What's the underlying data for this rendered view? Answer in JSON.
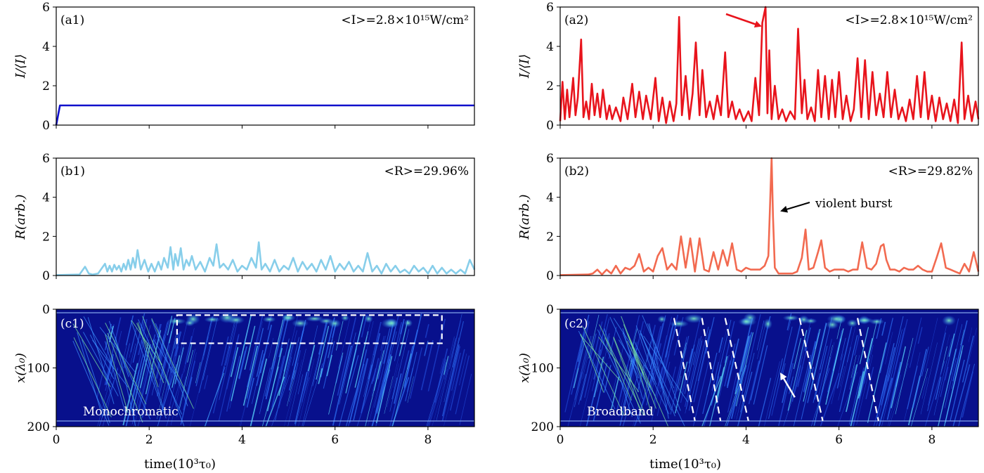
{
  "figure": {
    "xlabel": "time(10³τ₀)",
    "x_ticks": [
      0,
      2,
      4,
      6,
      8
    ],
    "xlim": [
      0,
      9
    ]
  },
  "chart_data": [
    {
      "type": "line",
      "panel": "(a1)",
      "annotation": "<I>=2.8×10¹⁵W/cm²",
      "ylabel": "I/⟨I⟩",
      "ylim": [
        0,
        6
      ],
      "y_ticks": [
        0,
        2,
        4,
        6
      ],
      "color": "#1010cc",
      "x": [
        0,
        0.08,
        9
      ],
      "y": [
        0,
        1,
        1
      ]
    },
    {
      "type": "line",
      "panel": "(a2)",
      "annotation": "<I>=2.8×10¹⁵W/cm²",
      "ylabel": "I/⟨I⟩",
      "ylim": [
        0,
        6
      ],
      "y_ticks": [
        0,
        2,
        4,
        6
      ],
      "color": "#e8141c",
      "x": [
        0,
        0.05,
        0.1,
        0.15,
        0.2,
        0.28,
        0.33,
        0.38,
        0.45,
        0.5,
        0.56,
        0.62,
        0.68,
        0.74,
        0.8,
        0.86,
        0.92,
        1.0,
        1.06,
        1.12,
        1.2,
        1.3,
        1.36,
        1.45,
        1.55,
        1.62,
        1.7,
        1.78,
        1.85,
        1.95,
        2.05,
        2.12,
        2.2,
        2.28,
        2.36,
        2.44,
        2.5,
        2.56,
        2.62,
        2.7,
        2.78,
        2.85,
        2.92,
        3.0,
        3.06,
        3.14,
        3.22,
        3.3,
        3.38,
        3.46,
        3.55,
        3.62,
        3.7,
        3.78,
        3.86,
        3.95,
        4.05,
        4.12,
        4.2,
        4.28,
        4.35,
        4.42,
        4.46,
        4.5,
        4.55,
        4.62,
        4.7,
        4.78,
        4.86,
        4.95,
        5.05,
        5.12,
        5.2,
        5.26,
        5.32,
        5.4,
        5.48,
        5.55,
        5.62,
        5.7,
        5.78,
        5.85,
        5.92,
        6.0,
        6.08,
        6.16,
        6.25,
        6.32,
        6.4,
        6.48,
        6.56,
        6.64,
        6.72,
        6.8,
        6.88,
        6.96,
        7.04,
        7.12,
        7.2,
        7.28,
        7.36,
        7.44,
        7.52,
        7.6,
        7.68,
        7.76,
        7.84,
        7.92,
        8.0,
        8.08,
        8.16,
        8.24,
        8.32,
        8.4,
        8.48,
        8.56,
        8.64,
        8.7,
        8.78,
        8.86,
        8.94,
        9.0
      ],
      "y": [
        0.2,
        2.2,
        0.3,
        1.8,
        0.4,
        2.4,
        0.5,
        1.4,
        4.35,
        0.4,
        1.2,
        0.3,
        2.1,
        0.5,
        1.6,
        0.4,
        1.8,
        0.3,
        1.0,
        0.3,
        0.9,
        0.2,
        1.4,
        0.3,
        2.1,
        0.4,
        1.7,
        0.3,
        1.5,
        0.3,
        2.4,
        0.2,
        1.4,
        0.1,
        1.2,
        0.2,
        1.1,
        5.5,
        0.5,
        2.5,
        0.3,
        1.6,
        4.2,
        0.5,
        2.8,
        0.4,
        1.2,
        0.3,
        1.5,
        0.5,
        3.7,
        0.4,
        1.2,
        0.3,
        0.8,
        0.2,
        0.7,
        0.2,
        2.4,
        0.5,
        5.2,
        6.0,
        0.6,
        3.8,
        0.3,
        2.0,
        0.3,
        0.8,
        0.2,
        0.7,
        0.3,
        4.9,
        0.6,
        2.3,
        0.3,
        0.9,
        0.2,
        2.8,
        0.4,
        2.5,
        0.3,
        2.3,
        0.4,
        2.7,
        0.3,
        1.5,
        0.2,
        0.8,
        3.4,
        0.4,
        3.3,
        0.3,
        2.7,
        0.5,
        1.6,
        0.4,
        2.7,
        0.4,
        1.8,
        0.3,
        0.9,
        0.2,
        1.3,
        0.3,
        2.5,
        0.4,
        2.7,
        0.3,
        1.5,
        0.2,
        1.4,
        0.3,
        1.1,
        0.2,
        1.3,
        0.1,
        4.2,
        0.3,
        1.5,
        0.2,
        1.2,
        0.3
      ]
    },
    {
      "type": "line",
      "panel": "(b1)",
      "annotation": "<R>=29.96%",
      "ylabel": "R(arb.)",
      "ylim": [
        0,
        6
      ],
      "y_ticks": [
        0,
        2,
        4,
        6
      ],
      "color": "#87ceea",
      "x": [
        0,
        0.5,
        0.62,
        0.7,
        0.78,
        0.9,
        1.05,
        1.1,
        1.15,
        1.2,
        1.25,
        1.3,
        1.35,
        1.4,
        1.45,
        1.5,
        1.55,
        1.6,
        1.65,
        1.7,
        1.75,
        1.82,
        1.9,
        1.98,
        2.05,
        2.12,
        2.2,
        2.26,
        2.32,
        2.4,
        2.46,
        2.52,
        2.56,
        2.62,
        2.68,
        2.74,
        2.8,
        2.86,
        2.92,
        3.0,
        3.1,
        3.2,
        3.3,
        3.38,
        3.45,
        3.52,
        3.6,
        3.7,
        3.8,
        3.9,
        4.0,
        4.1,
        4.2,
        4.3,
        4.36,
        4.42,
        4.5,
        4.6,
        4.7,
        4.8,
        4.9,
        5.0,
        5.1,
        5.2,
        5.3,
        5.4,
        5.5,
        5.6,
        5.7,
        5.8,
        5.9,
        6.0,
        6.1,
        6.2,
        6.3,
        6.4,
        6.5,
        6.6,
        6.7,
        6.8,
        6.9,
        7.0,
        7.1,
        7.2,
        7.3,
        7.4,
        7.5,
        7.6,
        7.7,
        7.8,
        7.9,
        8.0,
        8.1,
        8.2,
        8.3,
        8.4,
        8.5,
        8.6,
        8.7,
        8.8,
        8.9,
        9.0
      ],
      "y": [
        0.02,
        0.05,
        0.45,
        0.1,
        0.05,
        0.1,
        0.6,
        0.2,
        0.5,
        0.2,
        0.55,
        0.3,
        0.5,
        0.2,
        0.6,
        0.3,
        0.8,
        0.3,
        0.9,
        0.4,
        1.3,
        0.3,
        0.8,
        0.2,
        0.6,
        0.2,
        0.7,
        0.3,
        0.9,
        0.4,
        1.45,
        0.3,
        1.1,
        0.5,
        1.4,
        0.3,
        0.8,
        0.5,
        1.0,
        0.3,
        0.7,
        0.2,
        0.9,
        0.5,
        1.6,
        0.4,
        0.6,
        0.3,
        0.8,
        0.2,
        0.5,
        0.3,
        0.9,
        0.4,
        1.7,
        0.3,
        0.6,
        0.2,
        0.8,
        0.2,
        0.5,
        0.3,
        0.9,
        0.2,
        0.7,
        0.3,
        0.6,
        0.2,
        0.8,
        0.3,
        1.0,
        0.2,
        0.6,
        0.3,
        0.7,
        0.2,
        0.5,
        0.2,
        1.15,
        0.2,
        0.5,
        0.1,
        0.6,
        0.2,
        0.5,
        0.15,
        0.3,
        0.1,
        0.5,
        0.2,
        0.4,
        0.1,
        0.5,
        0.1,
        0.4,
        0.1,
        0.3,
        0.1,
        0.3,
        0.1,
        0.8,
        0.3
      ]
    },
    {
      "type": "line",
      "panel": "(b2)",
      "annotation": "<R>=29.82%",
      "ylabel": "R(arb.)",
      "ylim": [
        0,
        6
      ],
      "y_ticks": [
        0,
        2,
        4,
        6
      ],
      "color": "#f26a50",
      "x": [
        0,
        0.6,
        0.7,
        0.8,
        0.9,
        1.0,
        1.1,
        1.2,
        1.3,
        1.4,
        1.5,
        1.6,
        1.7,
        1.8,
        1.9,
        2.0,
        2.1,
        2.2,
        2.3,
        2.4,
        2.5,
        2.6,
        2.7,
        2.8,
        2.9,
        3.0,
        3.1,
        3.2,
        3.3,
        3.4,
        3.5,
        3.6,
        3.7,
        3.8,
        3.9,
        4.0,
        4.1,
        4.2,
        4.3,
        4.4,
        4.48,
        4.55,
        4.58,
        4.62,
        4.7,
        4.8,
        4.9,
        5.0,
        5.1,
        5.2,
        5.28,
        5.35,
        5.45,
        5.55,
        5.62,
        5.7,
        5.8,
        5.9,
        6.0,
        6.1,
        6.2,
        6.3,
        6.4,
        6.5,
        6.6,
        6.7,
        6.8,
        6.9,
        6.96,
        7.02,
        7.1,
        7.2,
        7.3,
        7.4,
        7.5,
        7.6,
        7.7,
        7.8,
        7.9,
        8.0,
        8.1,
        8.2,
        8.3,
        8.4,
        8.5,
        8.6,
        8.7,
        8.8,
        8.9,
        9.0
      ],
      "y": [
        0.02,
        0.05,
        0.1,
        0.3,
        0.05,
        0.3,
        0.1,
        0.5,
        0.1,
        0.4,
        0.3,
        0.5,
        1.1,
        0.2,
        0.4,
        0.2,
        1.0,
        1.4,
        0.3,
        0.6,
        0.3,
        2.0,
        0.4,
        1.9,
        0.2,
        1.9,
        0.3,
        0.2,
        1.2,
        0.3,
        1.3,
        0.5,
        1.65,
        0.3,
        0.2,
        0.4,
        0.3,
        0.3,
        0.3,
        0.5,
        1.0,
        6.0,
        3.0,
        0.4,
        0.1,
        0.1,
        0.1,
        0.1,
        0.2,
        0.9,
        2.35,
        0.3,
        0.4,
        1.2,
        1.8,
        0.4,
        0.2,
        0.3,
        0.3,
        0.3,
        0.2,
        0.3,
        0.3,
        1.7,
        0.4,
        0.3,
        0.6,
        1.5,
        1.6,
        0.8,
        0.3,
        0.3,
        0.2,
        0.4,
        0.3,
        0.3,
        0.5,
        0.3,
        0.2,
        0.2,
        0.9,
        1.65,
        0.4,
        0.3,
        0.2,
        0.1,
        0.6,
        0.2,
        1.2,
        0.2
      ]
    }
  ],
  "heatmaps": [
    {
      "panel": "(c1)",
      "ylabel": "x(λ₀)",
      "ylim": [
        200,
        0
      ],
      "y_ticks": [
        0,
        100,
        200
      ],
      "label": "Monochromatic",
      "highlight_box": {
        "x": [
          2.6,
          8.3
        ],
        "y": [
          10,
          58
        ]
      }
    },
    {
      "panel": "(c2)",
      "ylabel": "x(λ₀)",
      "ylim": [
        200,
        0
      ],
      "y_ticks": [
        0,
        100,
        200
      ],
      "label": "Broadband",
      "dashed_lines": [
        {
          "x": [
            2.45,
            2.9
          ],
          "y": [
            15,
            190
          ]
        },
        {
          "x": [
            3.05,
            3.45
          ],
          "y": [
            15,
            190
          ]
        },
        {
          "x": [
            3.55,
            4.05
          ],
          "y": [
            15,
            190
          ]
        },
        {
          "x": [
            5.15,
            5.65
          ],
          "y": [
            15,
            190
          ]
        },
        {
          "x": [
            6.4,
            6.85
          ],
          "y": [
            15,
            190
          ]
        }
      ]
    }
  ],
  "annotations": {
    "burst_label": "violent burst"
  }
}
